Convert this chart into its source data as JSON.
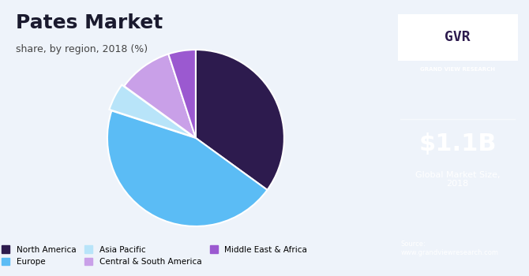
{
  "title": "Pates Market",
  "subtitle": "share, by region, 2018 (%)",
  "slices": [
    35.0,
    45.0,
    5.0,
    10.0,
    5.0
  ],
  "labels": [
    "North America",
    "Europe",
    "Asia Pacific",
    "Central & South America",
    "Middle East & Africa"
  ],
  "colors": [
    "#2d1b4e",
    "#5bbcf5",
    "#b8e4f9",
    "#c9a0e8",
    "#9b59d0"
  ],
  "explode": [
    0,
    0,
    0.03,
    0,
    0
  ],
  "startangle": 90,
  "bg_color": "#eef3fa",
  "right_panel_color": "#2d1b4e",
  "market_size": "$1.1B",
  "market_size_label": "Global Market Size,\n2018",
  "source_text": "Source:\nwww.grandviewresearch.com",
  "title_color": "#1a1a2e",
  "subtitle_color": "#444444"
}
